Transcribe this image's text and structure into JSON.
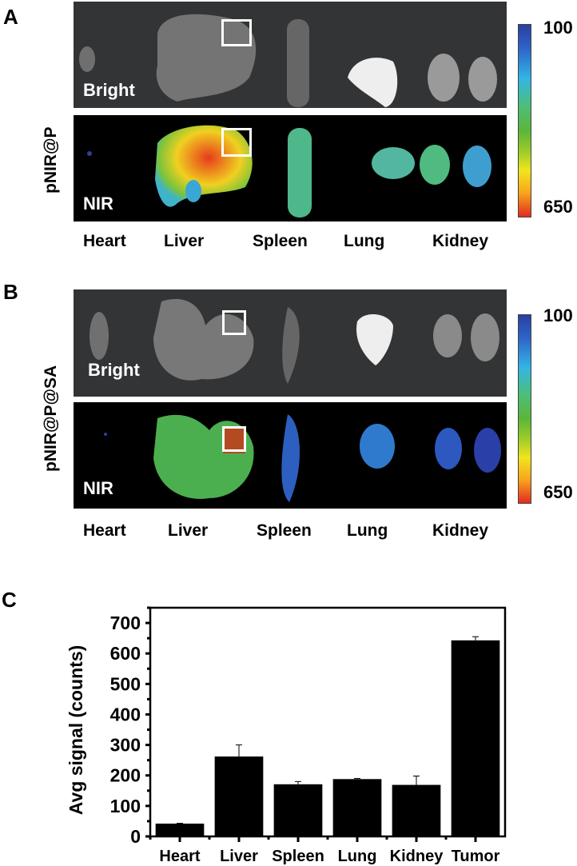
{
  "panel_a": {
    "letter": "A",
    "row_label": "pNIR@P",
    "bright_label": "Bright",
    "nir_label": "NIR",
    "organs": [
      "Heart",
      "Liver",
      "Spleen",
      "Lung",
      "Kidney"
    ],
    "colorbar": {
      "max_label": "100",
      "min_label": "650"
    }
  },
  "panel_b": {
    "letter": "B",
    "row_label": "pNIR@P@SA",
    "bright_label": "Bright",
    "nir_label": "NIR",
    "organs": [
      "Heart",
      "Liver",
      "Spleen",
      "Lung",
      "Kidney"
    ],
    "colorbar": {
      "max_label": "100",
      "min_label": "650"
    }
  },
  "panel_c": {
    "letter": "C"
  },
  "chart_data": {
    "type": "bar",
    "title": "",
    "xlabel": "",
    "ylabel": "Avg signal (counts)",
    "categories": [
      "Heart",
      "Liver",
      "Spleen",
      "Lung",
      "Kidney",
      "Tumor"
    ],
    "values": [
      42,
      262,
      171,
      188,
      169,
      643
    ],
    "error_upper": [
      1,
      38,
      9,
      2,
      29,
      12
    ],
    "ylim": [
      0,
      750
    ],
    "yticks": [
      "0",
      "100",
      "200",
      "300",
      "400",
      "500",
      "600",
      "700"
    ],
    "grid": false,
    "legend": "none",
    "bar_color": "#000000"
  }
}
